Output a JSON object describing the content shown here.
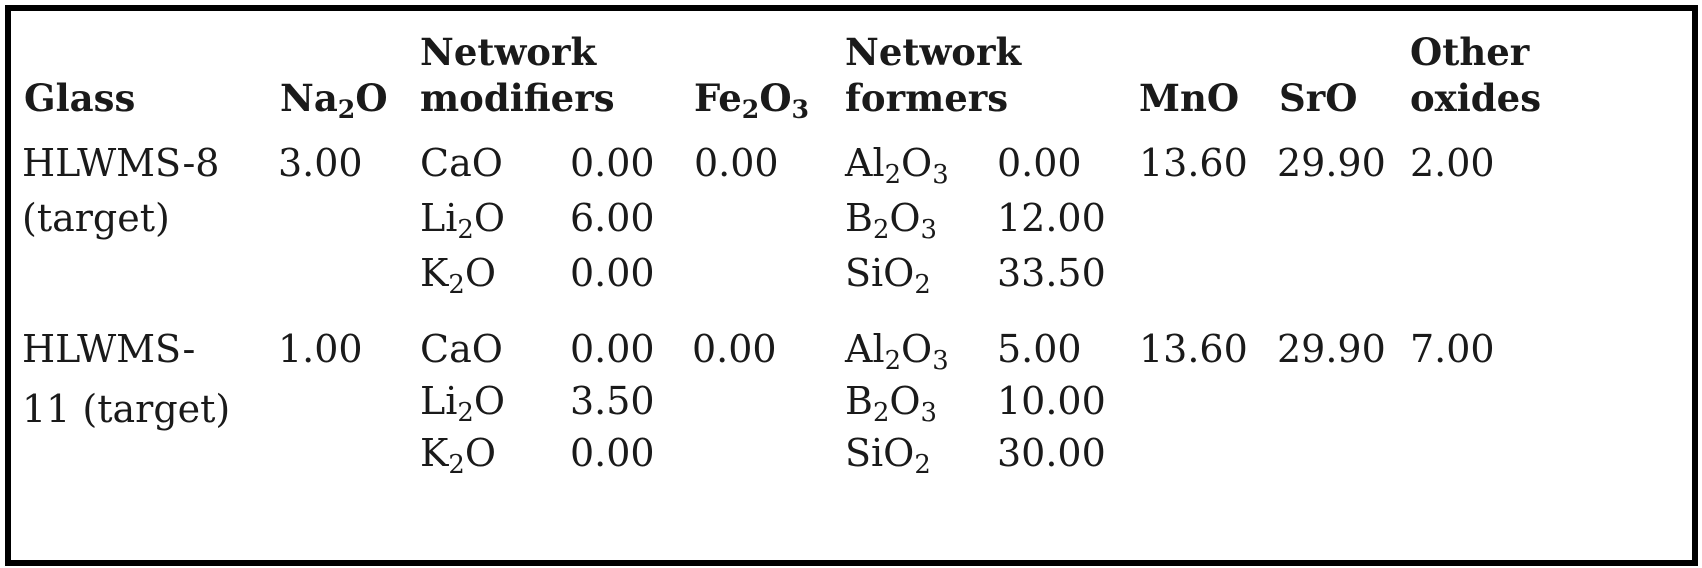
{
  "headers": {
    "glass": "Glass",
    "na2o": {
      "base": "Na",
      "sub": "2",
      "tail": "O"
    },
    "modifiers": [
      "Network",
      "modifiers"
    ],
    "fe2o3": {
      "base": "Fe",
      "sub": "2",
      "mid": "O",
      "sub2": "3"
    },
    "formers": [
      "Network",
      "formers"
    ],
    "mno": "MnO",
    "sro": "SrO",
    "other": [
      "Other",
      "oxides"
    ]
  },
  "rows": [
    {
      "glass": [
        "HLWMS-8",
        "(target)"
      ],
      "na2o": "3.00",
      "modifiers": [
        {
          "base": "CaO",
          "sub": "",
          "tail": "",
          "value": "0.00"
        },
        {
          "base": "Li",
          "sub": "2",
          "tail": "O",
          "value": "6.00"
        },
        {
          "base": "K",
          "sub": "2",
          "tail": "O",
          "value": "0.00"
        }
      ],
      "fe2o3": "0.00",
      "formers": [
        {
          "base": "Al",
          "sub": "2",
          "mid": "O",
          "sub2": "3",
          "value": "0.00"
        },
        {
          "base": "B",
          "sub": "2",
          "mid": "O",
          "sub2": "3",
          "value": "12.00"
        },
        {
          "base": "SiO",
          "sub": "",
          "mid": "",
          "sub2": "2",
          "value": "33.50"
        }
      ],
      "mno": "13.60",
      "sro": "29.90",
      "other": "2.00"
    },
    {
      "glass": [
        "HLWMS-",
        "11 (target)"
      ],
      "na2o": "1.00",
      "modifiers": [
        {
          "base": "CaO",
          "sub": "",
          "tail": "",
          "value": "0.00"
        },
        {
          "base": "Li",
          "sub": "2",
          "tail": "O",
          "value": "3.50"
        },
        {
          "base": "K",
          "sub": "2",
          "tail": "O",
          "value": "0.00"
        }
      ],
      "fe2o3": "0.00",
      "formers": [
        {
          "base": "Al",
          "sub": "2",
          "mid": "O",
          "sub2": "3",
          "value": "5.00"
        },
        {
          "base": "B",
          "sub": "2",
          "mid": "O",
          "sub2": "3",
          "value": "10.00"
        },
        {
          "base": "SiO",
          "sub": "",
          "mid": "",
          "sub2": "2",
          "value": "30.00"
        }
      ],
      "mno": "13.60",
      "sro": "29.90",
      "other": "7.00"
    }
  ]
}
